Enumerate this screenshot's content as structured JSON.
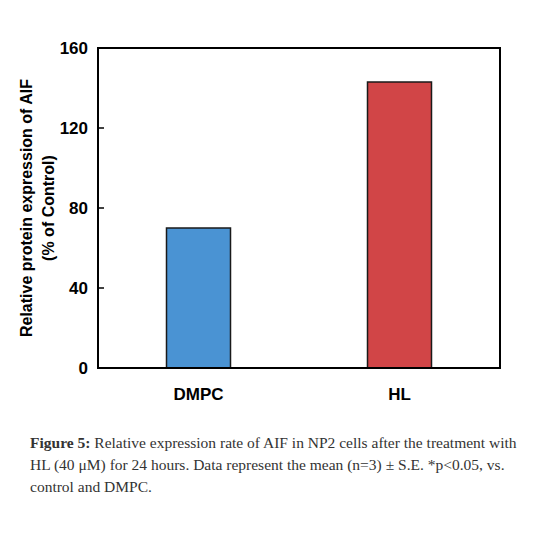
{
  "chart_data": {
    "type": "bar",
    "categories": [
      "DMPC",
      "HL"
    ],
    "values": [
      70,
      143
    ],
    "colors": [
      "#4a93d3",
      "#d14547"
    ],
    "ylabel": [
      "Relative protein expression of AIF",
      "(% of Control)"
    ],
    "ylim": [
      0,
      160
    ],
    "yticks": [
      0,
      40,
      80,
      120,
      160
    ],
    "grid": false,
    "caption": {
      "label": "Figure 5:",
      "text": "Relative expression rate of AIF in NP2 cells after the treatment with HL (40 μM) for 24 hours. Data represent the mean (n=3) ± S.E. *p<0.05, vs. control and DMPC."
    }
  }
}
